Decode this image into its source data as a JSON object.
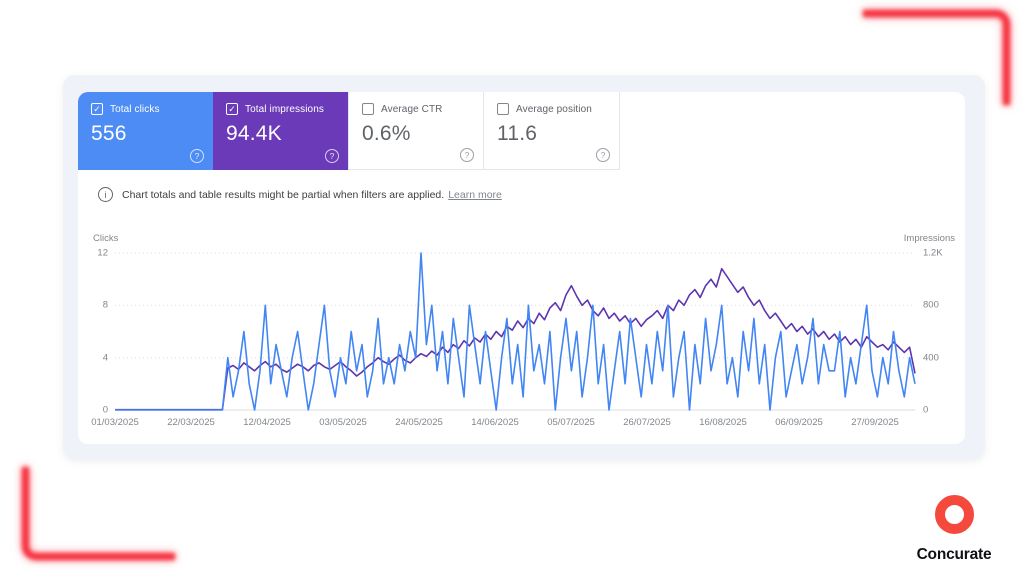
{
  "brand": {
    "name": "Concurate",
    "logo_color": "#f4493c"
  },
  "decor": {
    "accent_color": "#f63340"
  },
  "metrics": {
    "help_icon": "?",
    "cards": [
      {
        "label": "Total clicks",
        "value": "556",
        "checked": true,
        "bg": "#4d8bf5",
        "text_color": "#ffffff"
      },
      {
        "label": "Total impressions",
        "value": "94.4K",
        "checked": true,
        "bg": "#6b3ab8",
        "text_color": "#ffffff"
      },
      {
        "label": "Average CTR",
        "value": "0.6%",
        "checked": false,
        "bg": "#ffffff",
        "text_color": "#5f6368"
      },
      {
        "label": "Average position",
        "value": "11.6",
        "checked": false,
        "bg": "#ffffff",
        "text_color": "#5f6368"
      }
    ]
  },
  "notice": {
    "icon": "i",
    "text": "Chart totals and table results might be partial when filters are applied.",
    "link": "Learn more"
  },
  "chart_data": {
    "type": "line",
    "grid": "dotted-horizontal",
    "legend_position": "none",
    "left_axis": {
      "label": "Clicks",
      "max": 12,
      "ticks": [
        "12",
        "8",
        "4",
        "0"
      ]
    },
    "right_axis": {
      "label": "Impressions",
      "max": 1200,
      "ticks": [
        "1.2K",
        "800",
        "400",
        "0"
      ]
    },
    "x_labels": [
      "01/03/2025",
      "22/03/2025",
      "12/04/2025",
      "03/05/2025",
      "24/05/2025",
      "14/06/2025",
      "05/07/2025",
      "26/07/2025",
      "16/08/2025",
      "06/09/2025",
      "27/09/2025"
    ],
    "x_label_fraction_step": 0.095,
    "series": [
      {
        "name": "Clicks",
        "axis": "left",
        "color": "#4285f4",
        "values": [
          0,
          0,
          0,
          0,
          0,
          0,
          0,
          0,
          0,
          0,
          0,
          0,
          0,
          0,
          0,
          0,
          0,
          0,
          0,
          0,
          0,
          4,
          1,
          3,
          6,
          2,
          0,
          3,
          8,
          2,
          5,
          3,
          1,
          4,
          6,
          3,
          0,
          2,
          5,
          8,
          3,
          1,
          4,
          2,
          6,
          3,
          5,
          1,
          3,
          7,
          2,
          4,
          2,
          5,
          3,
          6,
          4,
          12,
          5,
          8,
          3,
          6,
          2,
          7,
          4,
          1,
          8,
          5,
          2,
          6,
          3,
          0,
          4,
          7,
          2,
          5,
          1,
          8,
          3,
          5,
          2,
          6,
          0,
          4,
          7,
          3,
          6,
          1,
          4,
          8,
          2,
          5,
          0,
          3,
          6,
          2,
          7,
          4,
          1,
          5,
          2,
          6,
          3,
          8,
          1,
          4,
          6,
          0,
          5,
          2,
          7,
          3,
          5,
          8,
          2,
          4,
          1,
          6,
          3,
          7,
          2,
          5,
          0,
          4,
          6,
          1,
          3,
          5,
          2,
          4,
          7,
          2,
          5,
          3,
          3,
          6,
          1,
          4,
          2,
          5,
          8,
          3,
          1,
          4,
          2,
          6,
          3,
          1,
          4,
          2
        ]
      },
      {
        "name": "Impressions",
        "axis": "right",
        "color": "#5e35b1",
        "values": [
          2,
          2,
          2,
          2,
          2,
          2,
          2,
          2,
          2,
          2,
          2,
          2,
          2,
          2,
          2,
          2,
          2,
          2,
          2,
          2,
          2,
          320,
          340,
          310,
          360,
          330,
          300,
          340,
          370,
          330,
          350,
          310,
          290,
          320,
          350,
          330,
          300,
          340,
          360,
          330,
          310,
          340,
          370,
          330,
          300,
          260,
          290,
          330,
          360,
          400,
          370,
          350,
          390,
          420,
          380,
          360,
          400,
          430,
          410,
          450,
          420,
          480,
          440,
          500,
          470,
          530,
          490,
          550,
          520,
          580,
          540,
          600,
          560,
          640,
          610,
          680,
          630,
          700,
          660,
          740,
          690,
          780,
          820,
          760,
          880,
          950,
          870,
          800,
          840,
          760,
          720,
          780,
          700,
          740,
          680,
          720,
          660,
          700,
          640,
          690,
          720,
          760,
          700,
          800,
          760,
          840,
          800,
          880,
          920,
          860,
          950,
          1000,
          940,
          1080,
          1020,
          960,
          900,
          940,
          860,
          800,
          840,
          760,
          700,
          740,
          680,
          620,
          660,
          600,
          640,
          580,
          620,
          560,
          600,
          540,
          580,
          520,
          560,
          500,
          540,
          480,
          560,
          520,
          480,
          500,
          460,
          520,
          480,
          440,
          480,
          280
        ]
      }
    ]
  }
}
